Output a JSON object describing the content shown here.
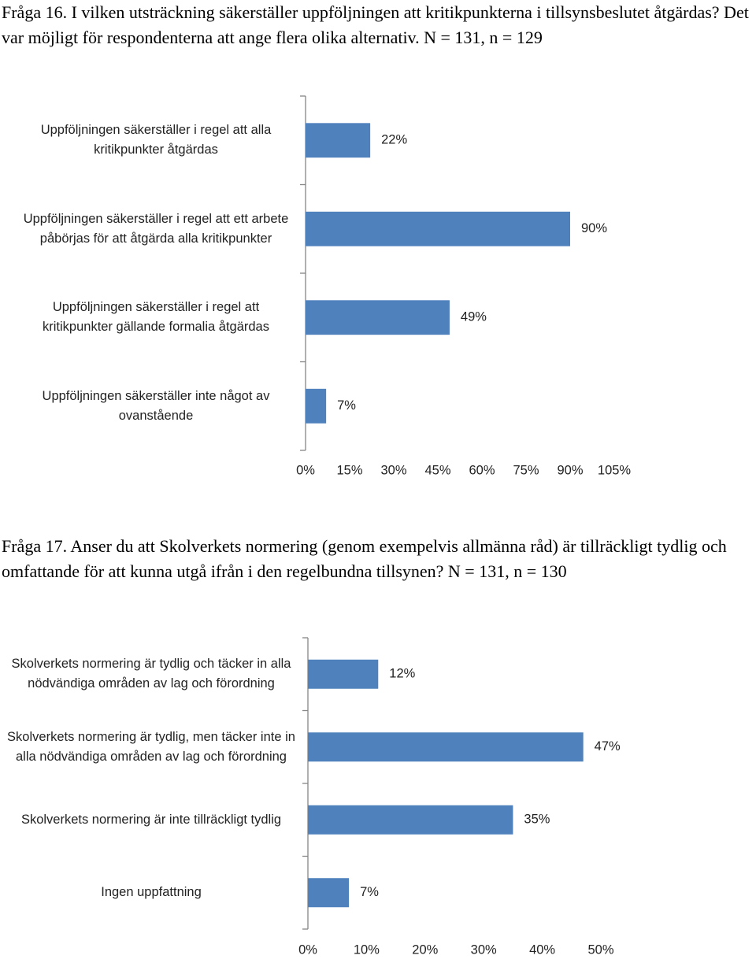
{
  "chart_data": [
    {
      "type": "bar",
      "orientation": "horizontal",
      "title": "Fråga 16. I vilken utsträckning säkerställer uppföljningen att kritikpunkterna i tillsynsbeslutet åtgärdas? Det var möjligt för respondenterna att ange flera olika alternativ. N = 131, n = 129",
      "categories": [
        "Uppföljningen säkerställer i regel att alla kritikpunkter åtgärdas",
        "Uppföljningen säkerställer i regel att ett arbete påbörjas för att åtgärda alla kritikpunkter",
        "Uppföljningen säkerställer i regel att kritikpunkter gällande formalia åtgärdas",
        "Uppföljningen säkerställer inte något av ovanstående"
      ],
      "values": [
        22,
        90,
        49,
        7
      ],
      "value_labels": [
        "22%",
        "90%",
        "49%",
        "7%"
      ],
      "color": "#4f81bd",
      "xlim": [
        0,
        105
      ],
      "xticks": [
        {
          "value": 0,
          "label": "0%"
        },
        {
          "value": 15,
          "label": "15%"
        },
        {
          "value": 30,
          "label": "30%"
        },
        {
          "value": 45,
          "label": "45%"
        },
        {
          "value": 60,
          "label": "60%"
        },
        {
          "value": 75,
          "label": "75%"
        },
        {
          "value": 90,
          "label": "90%"
        },
        {
          "value": 105,
          "label": "105%"
        }
      ]
    },
    {
      "type": "bar",
      "orientation": "horizontal",
      "title": "Fråga 17. Anser du att Skolverkets normering (genom exempelvis allmänna råd) är tillräckligt tydlig och omfattande för att kunna utgå ifrån i den regelbundna tillsynen? N = 131, n = 130",
      "categories": [
        "Skolverkets normering är tydlig och täcker in alla nödvändiga områden av lag och förordning",
        "Skolverkets normering är tydlig, men täcker inte in alla nödvändiga områden av lag och förordning",
        "Skolverkets normering är inte tillräckligt tydlig",
        "Ingen uppfattning"
      ],
      "values": [
        12,
        47,
        35,
        7
      ],
      "value_labels": [
        "12%",
        "47%",
        "35%",
        "7%"
      ],
      "color": "#4f81bd",
      "xlim": [
        0,
        50
      ],
      "xticks": [
        {
          "value": 0,
          "label": "0%"
        },
        {
          "value": 10,
          "label": "10%"
        },
        {
          "value": 20,
          "label": "20%"
        },
        {
          "value": 30,
          "label": "30%"
        },
        {
          "value": 40,
          "label": "40%"
        },
        {
          "value": 50,
          "label": "50%"
        }
      ]
    }
  ]
}
